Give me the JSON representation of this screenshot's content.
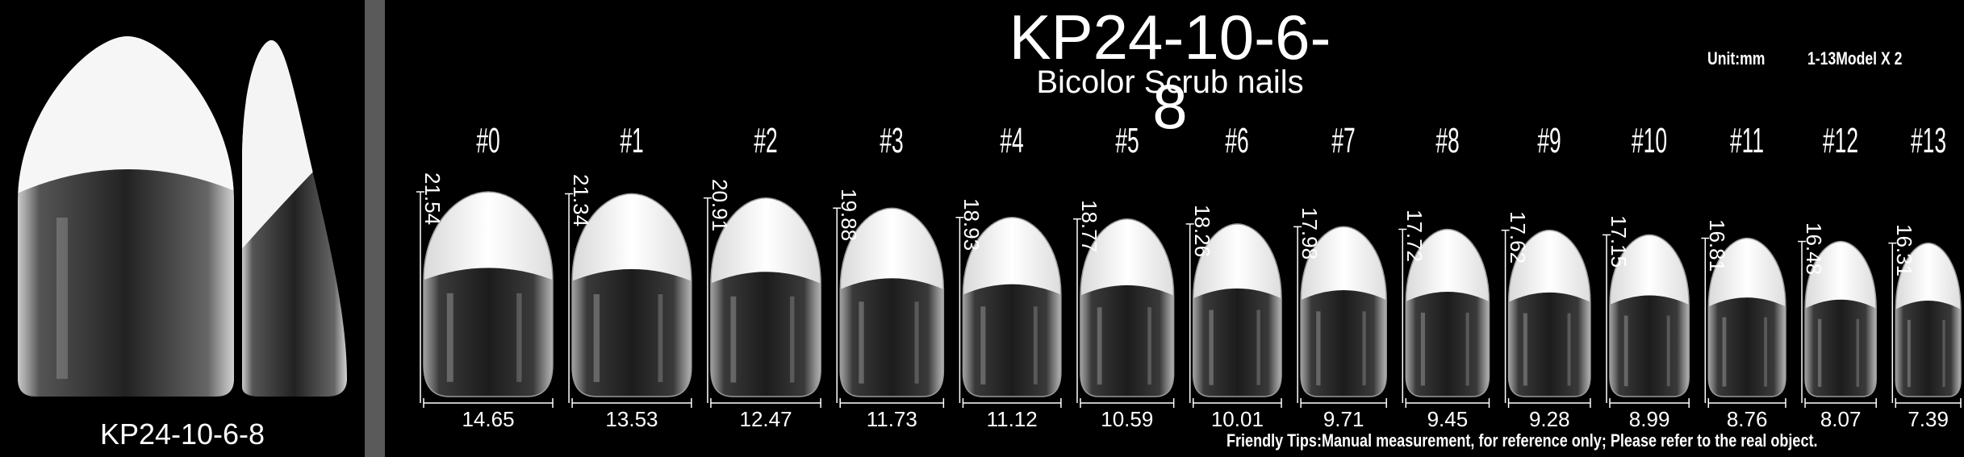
{
  "product": {
    "code": "KP24-10-6-8",
    "subtitle": "Bicolor Scrub nails",
    "unit": "Unit:mm",
    "model": "1-13Model X 2",
    "left_caption": "KP24-10-6-8",
    "tips": "Friendly Tips:Manual measurement, for reference only; Please refer to the real object."
  },
  "sizes": [
    {
      "label": "#0",
      "height": "21.54",
      "width": "14.65"
    },
    {
      "label": "#1",
      "height": "21.34",
      "width": "13.53"
    },
    {
      "label": "#2",
      "height": "20.91",
      "width": "12.47"
    },
    {
      "label": "#3",
      "height": "19.88",
      "width": "11.73"
    },
    {
      "label": "#4",
      "height": "18.93",
      "width": "11.12"
    },
    {
      "label": "#5",
      "height": "18.77",
      "width": "10.59"
    },
    {
      "label": "#6",
      "height": "18.26",
      "width": "10.01"
    },
    {
      "label": "#7",
      "height": "17.98",
      "width": "9.71"
    },
    {
      "label": "#8",
      "height": "17.72",
      "width": "9.45"
    },
    {
      "label": "#9",
      "height": "17.62",
      "width": "9.28"
    },
    {
      "label": "#10",
      "height": "17.15",
      "width": "8.99"
    },
    {
      "label": "#11",
      "height": "16.81",
      "width": "8.76"
    },
    {
      "label": "#12",
      "height": "16.48",
      "width": "8.07"
    },
    {
      "label": "#13",
      "height": "16.31",
      "width": "7.39"
    }
  ],
  "colors": {
    "background": "#000000",
    "divider": "#5a5a5a",
    "tip": "#f4f4f4",
    "nail_body": "#2a2a2a",
    "text": "#ffffff"
  }
}
